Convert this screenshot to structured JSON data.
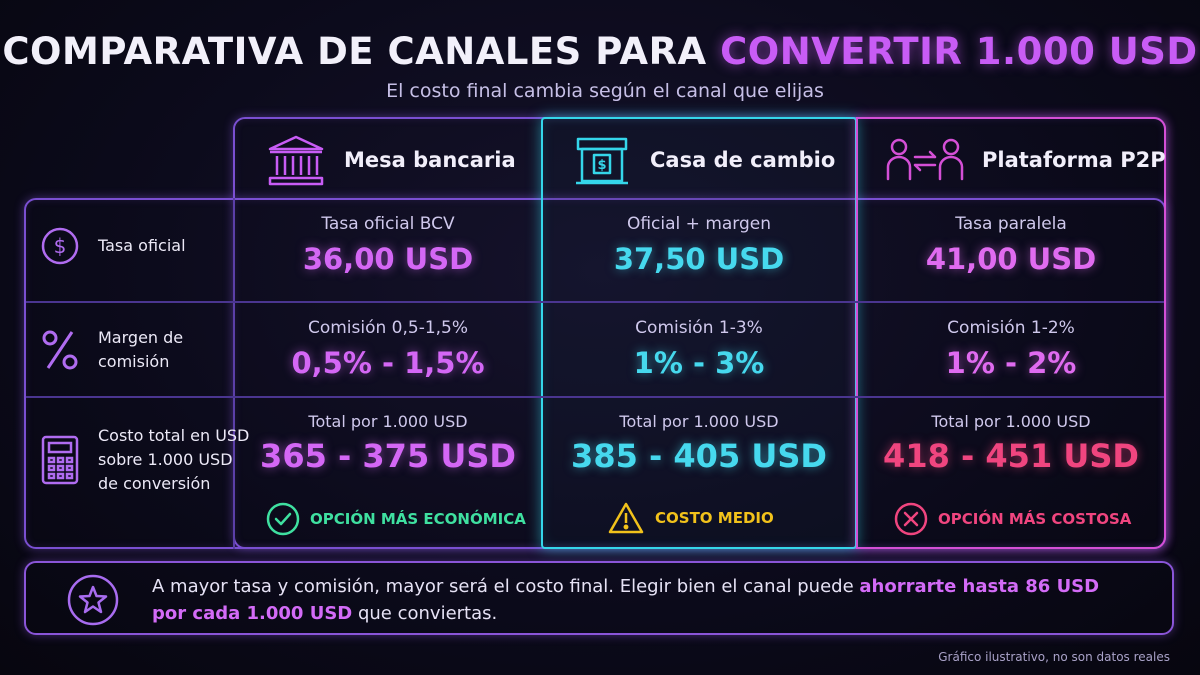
{
  "header": {
    "title_main": "COMPARATIVA DE CANALES PARA",
    "title_highlight": "CONVERTIR 1.000 USD",
    "subtitle": "El costo final cambia según el canal que elijas"
  },
  "columns": [
    {
      "label": "Mesa bancaria",
      "icon": "bank-icon",
      "accent": "#c85cf5"
    },
    {
      "label": "Casa de cambio",
      "icon": "exchange-booth-icon",
      "accent": "#35d6ea"
    },
    {
      "label": "Plataforma P2P",
      "icon": "p2p-users-icon",
      "accent": "#d44fd6"
    }
  ],
  "rows": [
    {
      "label": "Tasa oficial",
      "icon": "dollar-circle-icon",
      "cells": [
        {
          "small": "Tasa oficial BCV",
          "big": "36,00 USD"
        },
        {
          "small": "Oficial + margen",
          "big": "37,50 USD"
        },
        {
          "small": "Tasa paralela",
          "big": "41,00 USD"
        }
      ]
    },
    {
      "label_line1": "Margen de",
      "label_line2": "comisión",
      "icon": "percent-icon",
      "cells": [
        {
          "small": "Comisión 0,5-1,5%",
          "big": "0,5% - 1,5%"
        },
        {
          "small": "Comisión 1-3%",
          "big": "1% - 3%"
        },
        {
          "small": "Comisión 1-2%",
          "big": "1% - 2%"
        }
      ]
    },
    {
      "label_line1": "Costo total en USD",
      "label_line2": "sobre 1.000 USD",
      "label_line3": "de conversión",
      "icon": "calculator-icon",
      "cells": [
        {
          "small": "Total por 1.000 USD",
          "big": "365 - 375 USD",
          "badge": "OPCIÓN MÁS ECONÓMICA",
          "badge_icon": "check-circle-icon",
          "badge_color": "#3fe0a0"
        },
        {
          "small": "Total por 1.000 USD",
          "big": "385 - 405 USD",
          "badge": "COSTO MEDIO",
          "badge_icon": "warning-triangle-icon",
          "badge_color": "#f2c21b"
        },
        {
          "small": "Total por 1.000 USD",
          "big": "418 - 451 USD",
          "badge": "OPCIÓN MÁS COSTOSA",
          "badge_icon": "x-circle-icon",
          "badge_color": "#f0457f"
        }
      ]
    }
  ],
  "note": {
    "icon": "star-circle-icon",
    "text_before": "A mayor tasa y comisión, mayor será el costo final. Elegir bien el canal puede",
    "text_strong": "ahorrarte hasta 86 USD por cada 1.000 USD",
    "text_after": "que conviertas."
  },
  "footer": "Gráfico ilustrativo, no son datos reales"
}
